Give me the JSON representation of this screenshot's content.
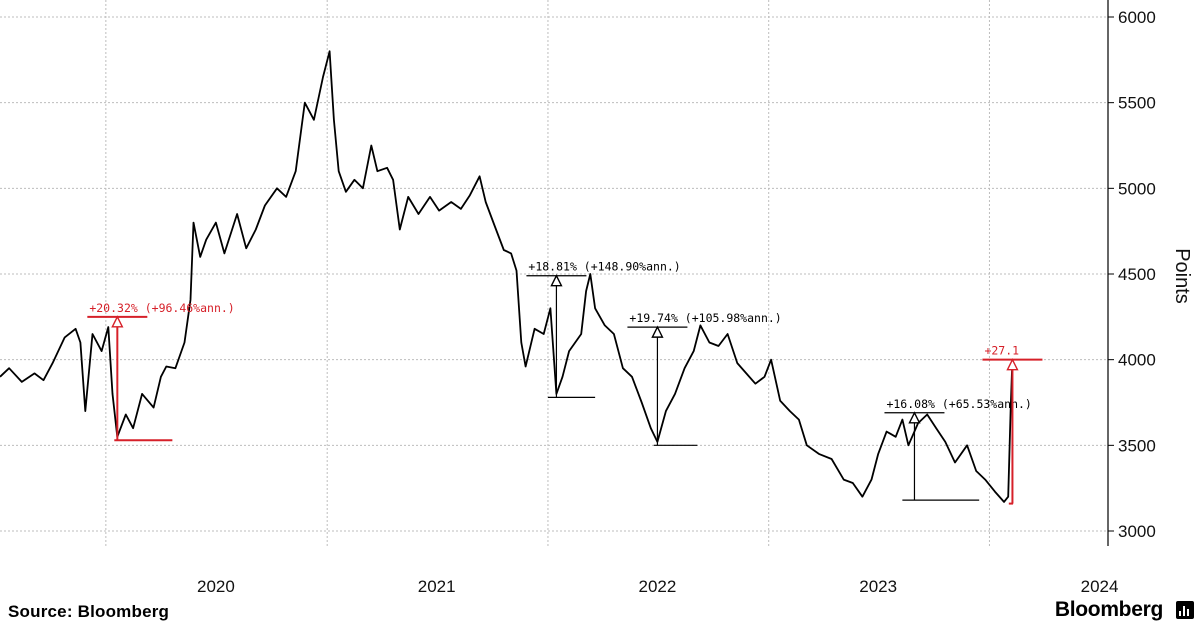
{
  "source_text": "Source: Bloomberg",
  "brand_text": "Bloomberg",
  "brand_icon": "bloomberg-bars-icon",
  "colors": {
    "line": "#000000",
    "highlight": "#d62029",
    "grid": "#bdbdbd"
  },
  "chart_data": {
    "type": "line",
    "title": "",
    "xlabel": "",
    "ylabel": "Points",
    "y_axis_position": "right",
    "ylim": [
      2900,
      6100
    ],
    "xlim": [
      "2019-07-10",
      "2024-07-15"
    ],
    "y_ticks": [
      3000,
      3500,
      4000,
      4500,
      5000,
      5500,
      6000
    ],
    "x_ticks": [
      "2020",
      "2021",
      "2022",
      "2023",
      "2024"
    ],
    "grid": true,
    "series": [
      {
        "points": [
          [
            "2019-07-10",
            3900
          ],
          [
            "2019-07-25",
            3950
          ],
          [
            "2019-08-15",
            3870
          ],
          [
            "2019-09-05",
            3920
          ],
          [
            "2019-09-20",
            3880
          ],
          [
            "2019-10-05",
            3980
          ],
          [
            "2019-10-25",
            4130
          ],
          [
            "2019-11-12",
            4180
          ],
          [
            "2019-11-20",
            4100
          ],
          [
            "2019-11-28",
            3700
          ],
          [
            "2019-12-10",
            4150
          ],
          [
            "2019-12-25",
            4050
          ],
          [
            "2020-01-05",
            4190
          ],
          [
            "2020-01-12",
            3800
          ],
          [
            "2020-01-20",
            3550
          ],
          [
            "2020-02-03",
            3680
          ],
          [
            "2020-02-15",
            3600
          ],
          [
            "2020-03-01",
            3800
          ],
          [
            "2020-03-20",
            3720
          ],
          [
            "2020-04-01",
            3900
          ],
          [
            "2020-04-10",
            3960
          ],
          [
            "2020-04-25",
            3950
          ],
          [
            "2020-05-10",
            4100
          ],
          [
            "2020-05-20",
            4350
          ],
          [
            "2020-05-25",
            4800
          ],
          [
            "2020-06-05",
            4600
          ],
          [
            "2020-06-15",
            4700
          ],
          [
            "2020-07-01",
            4800
          ],
          [
            "2020-07-15",
            4620
          ],
          [
            "2020-08-05",
            4850
          ],
          [
            "2020-08-20",
            4650
          ],
          [
            "2020-09-05",
            4760
          ],
          [
            "2020-09-20",
            4900
          ],
          [
            "2020-10-10",
            5000
          ],
          [
            "2020-10-25",
            4950
          ],
          [
            "2020-11-10",
            5100
          ],
          [
            "2020-11-25",
            5500
          ],
          [
            "2020-12-10",
            5400
          ],
          [
            "2020-12-25",
            5650
          ],
          [
            "2021-01-05",
            5800
          ],
          [
            "2021-01-12",
            5400
          ],
          [
            "2021-01-20",
            5100
          ],
          [
            "2021-02-01",
            4980
          ],
          [
            "2021-02-15",
            5050
          ],
          [
            "2021-03-01",
            5000
          ],
          [
            "2021-03-15",
            5250
          ],
          [
            "2021-03-25",
            5100
          ],
          [
            "2021-04-10",
            5120
          ],
          [
            "2021-04-20",
            5050
          ],
          [
            "2021-05-01",
            4760
          ],
          [
            "2021-05-15",
            4950
          ],
          [
            "2021-06-01",
            4850
          ],
          [
            "2021-06-20",
            4950
          ],
          [
            "2021-07-05",
            4870
          ],
          [
            "2021-07-25",
            4920
          ],
          [
            "2021-08-10",
            4880
          ],
          [
            "2021-08-25",
            4960
          ],
          [
            "2021-09-10",
            5070
          ],
          [
            "2021-09-20",
            4920
          ],
          [
            "2021-10-05",
            4780
          ],
          [
            "2021-10-20",
            4640
          ],
          [
            "2021-11-01",
            4620
          ],
          [
            "2021-11-10",
            4520
          ],
          [
            "2021-11-18",
            4100
          ],
          [
            "2021-11-25",
            3960
          ],
          [
            "2021-12-10",
            4180
          ],
          [
            "2021-12-25",
            4150
          ],
          [
            "2022-01-05",
            4300
          ],
          [
            "2022-01-15",
            3800
          ],
          [
            "2022-01-25",
            3900
          ],
          [
            "2022-02-05",
            4050
          ],
          [
            "2022-02-25",
            4150
          ],
          [
            "2022-03-05",
            4400
          ],
          [
            "2022-03-12",
            4500
          ],
          [
            "2022-03-20",
            4300
          ],
          [
            "2022-04-05",
            4200
          ],
          [
            "2022-04-20",
            4150
          ],
          [
            "2022-05-05",
            3950
          ],
          [
            "2022-05-20",
            3900
          ],
          [
            "2022-06-05",
            3750
          ],
          [
            "2022-06-20",
            3600
          ],
          [
            "2022-07-01",
            3520
          ],
          [
            "2022-07-15",
            3700
          ],
          [
            "2022-07-30",
            3800
          ],
          [
            "2022-08-15",
            3950
          ],
          [
            "2022-08-30",
            4050
          ],
          [
            "2022-09-10",
            4200
          ],
          [
            "2022-09-25",
            4100
          ],
          [
            "2022-10-10",
            4080
          ],
          [
            "2022-10-25",
            4150
          ],
          [
            "2022-11-10",
            3980
          ],
          [
            "2022-11-25",
            3920
          ],
          [
            "2022-12-10",
            3860
          ],
          [
            "2022-12-25",
            3900
          ],
          [
            "2023-01-05",
            4000
          ],
          [
            "2023-01-20",
            3760
          ],
          [
            "2023-02-05",
            3700
          ],
          [
            "2023-02-20",
            3650
          ],
          [
            "2023-03-05",
            3500
          ],
          [
            "2023-03-25",
            3450
          ],
          [
            "2023-04-15",
            3420
          ],
          [
            "2023-05-05",
            3300
          ],
          [
            "2023-05-20",
            3280
          ],
          [
            "2023-06-05",
            3200
          ],
          [
            "2023-06-20",
            3300
          ],
          [
            "2023-07-01",
            3450
          ],
          [
            "2023-07-15",
            3580
          ],
          [
            "2023-07-30",
            3550
          ],
          [
            "2023-08-10",
            3650
          ],
          [
            "2023-08-20",
            3500
          ],
          [
            "2023-09-05",
            3630
          ],
          [
            "2023-09-20",
            3680
          ],
          [
            "2023-10-05",
            3600
          ],
          [
            "2023-10-20",
            3520
          ],
          [
            "2023-11-05",
            3400
          ],
          [
            "2023-11-25",
            3500
          ],
          [
            "2023-12-10",
            3350
          ],
          [
            "2023-12-25",
            3300
          ],
          [
            "2024-01-10",
            3230
          ],
          [
            "2024-01-25",
            3170
          ],
          [
            "2024-02-01",
            3200
          ],
          [
            "2024-02-05",
            3700
          ],
          [
            "2024-02-08",
            4000
          ]
        ]
      }
    ],
    "annotations": [
      {
        "text": "+20.32% (+96.46%ann.)",
        "color": "#d62029",
        "from_date": "2020-01-20",
        "from_value": 3530,
        "to_value": 4250,
        "line_start": "2020-01-15",
        "line_end": "2020-04-20"
      },
      {
        "text": "+18.81% (+148.90%ann.)",
        "color": "#000000",
        "from_date": "2022-01-15",
        "from_value": 3780,
        "to_value": 4490,
        "line_start": "2022-01-01",
        "line_end": "2022-03-20"
      },
      {
        "text": "+19.74% (+105.98%ann.)",
        "color": "#000000",
        "from_date": "2022-07-01",
        "from_value": 3500,
        "to_value": 4190,
        "line_start": "2022-06-25",
        "line_end": "2022-09-05"
      },
      {
        "text": "+16.08% (+65.53%ann.)",
        "color": "#000000",
        "from_date": "2023-08-30",
        "from_value": 3180,
        "to_value": 3690,
        "line_start": "2023-08-10",
        "line_end": "2023-12-15"
      },
      {
        "text": "+27.1",
        "color": "#d62029",
        "from_date": "2024-02-08",
        "from_value": 3160,
        "to_value": 4000,
        "line_start": "2024-02-02",
        "line_end": "2024-02-09"
      }
    ]
  }
}
